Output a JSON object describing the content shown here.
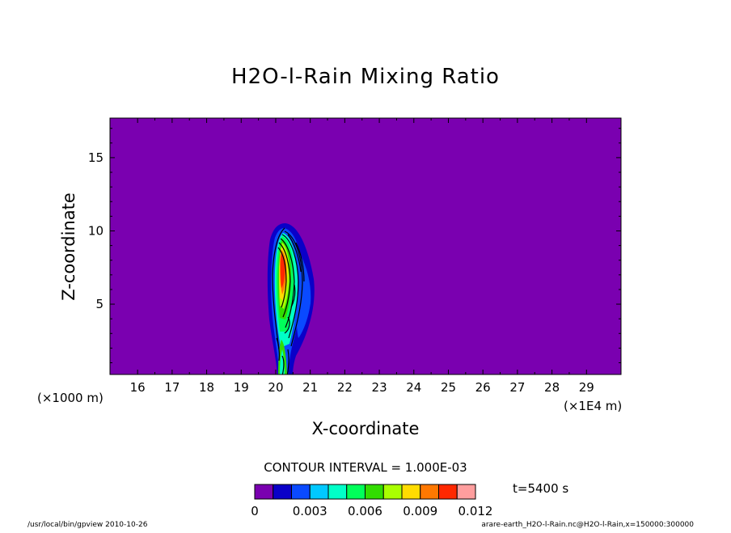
{
  "chart_data": {
    "type": "contour",
    "title": "H2O-l-Rain Mixing Ratio",
    "xlabel": "X-coordinate",
    "ylabel": "Z-coordinate",
    "x_unit_note": "(×1E4 m)",
    "y_unit_note": "(×1000 m)",
    "xlim": [
      15.2,
      30.0
    ],
    "ylim": [
      0.2,
      17.7
    ],
    "xticks": [
      "16",
      "17",
      "18",
      "19",
      "20",
      "21",
      "22",
      "23",
      "24",
      "25",
      "26",
      "27",
      "28",
      "29"
    ],
    "yticks": [
      "5",
      "10",
      "15"
    ],
    "contour_interval": "CONTOUR INTERVAL = 1.000E-03",
    "time": "t=5400 s",
    "colorbar": {
      "levels": [
        0,
        0.001,
        0.002,
        0.003,
        0.004,
        0.005,
        0.006,
        0.007,
        0.008,
        0.009,
        0.01,
        0.011,
        0.012
      ],
      "tick_labels": [
        "0",
        "0.003",
        "0.006",
        "0.009",
        "0.012"
      ],
      "colors": [
        "#7a00b0",
        "#0a00c8",
        "#0a4aff",
        "#00c8ff",
        "#00ffc8",
        "#00ff5a",
        "#32dc00",
        "#aaff00",
        "#ffdc00",
        "#ff7800",
        "#ff2800",
        "#ff9e9e"
      ]
    },
    "background_color": "#7a00b0",
    "footer_left": "/usr/local/bin/gpview  2010-10-26",
    "footer_right": "arare-earth_H2O-l-Rain.nc@H2O-l-Rain,x=150000:300000"
  }
}
